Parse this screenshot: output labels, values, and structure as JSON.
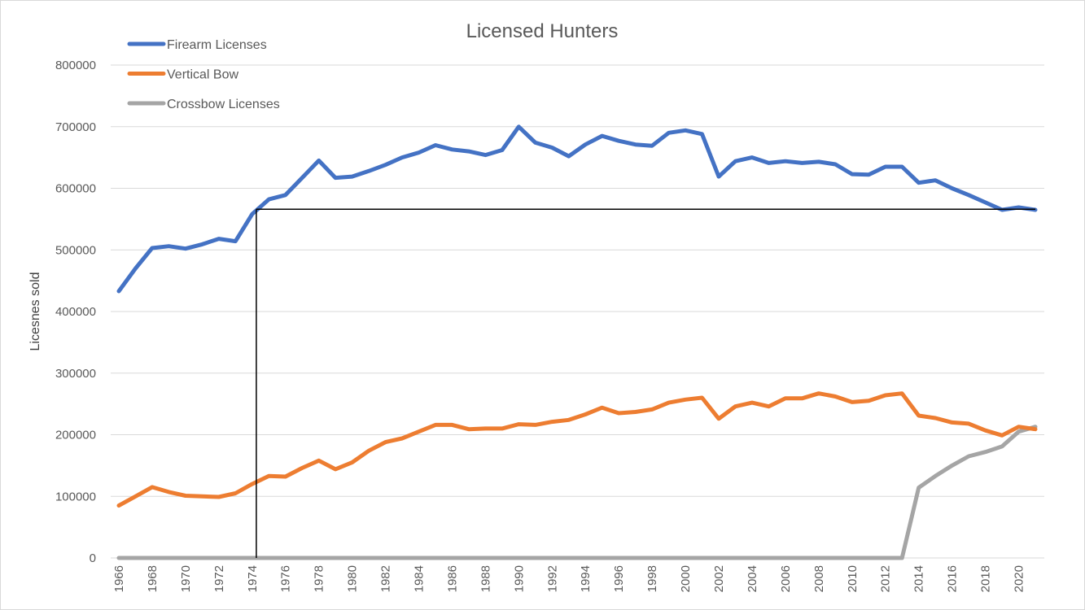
{
  "chart_data": {
    "type": "line",
    "title": "Licensed Hunters",
    "xlabel": "",
    "ylabel": "Licesnes sold",
    "ylim": [
      0,
      800000
    ],
    "ytick_step": 100000,
    "yticks": [
      "0",
      "100000",
      "200000",
      "300000",
      "400000",
      "500000",
      "600000",
      "700000",
      "800000"
    ],
    "xlim": [
      1966,
      2021
    ],
    "xtick_labels": [
      "1966",
      "1968",
      "1970",
      "1972",
      "1974",
      "1976",
      "1978",
      "1980",
      "1982",
      "1984",
      "1986",
      "1988",
      "1990",
      "1992",
      "1994",
      "1996",
      "1998",
      "2000",
      "2002",
      "2004",
      "2006",
      "2008",
      "2010",
      "2012",
      "2014",
      "2016",
      "2018",
      "2020"
    ],
    "grid": "horizontal",
    "legend_placement": "top-left",
    "x": [
      1966,
      1967,
      1968,
      1969,
      1970,
      1971,
      1972,
      1973,
      1974,
      1975,
      1976,
      1977,
      1978,
      1979,
      1980,
      1981,
      1982,
      1983,
      1984,
      1985,
      1986,
      1987,
      1988,
      1989,
      1990,
      1991,
      1992,
      1993,
      1994,
      1995,
      1996,
      1997,
      1998,
      1999,
      2000,
      2001,
      2002,
      2003,
      2004,
      2005,
      2006,
      2007,
      2008,
      2009,
      2010,
      2011,
      2012,
      2013,
      2014,
      2015,
      2016,
      2017,
      2018,
      2019,
      2020,
      2021
    ],
    "series": [
      {
        "name": "Firearm Licenses",
        "color": "#4472C4",
        "values": [
          433000,
          470000,
          503000,
          506000,
          502000,
          509000,
          518000,
          514000,
          558000,
          582000,
          589000,
          617000,
          645000,
          617000,
          619000,
          628000,
          638000,
          650000,
          658000,
          670000,
          663000,
          660000,
          654000,
          662000,
          700000,
          674000,
          666000,
          652000,
          671000,
          685000,
          677000,
          671000,
          669000,
          690000,
          694000,
          688000,
          619000,
          644000,
          650000,
          641000,
          644000,
          641000,
          643000,
          639000,
          623000,
          622000,
          635000,
          635000,
          609000,
          613000,
          600000,
          589000,
          577000,
          565000,
          569000,
          565000
        ]
      },
      {
        "name": "Vertical Bow",
        "color": "#ED7D31",
        "values": [
          85000,
          100000,
          115000,
          107000,
          101000,
          100000,
          99000,
          105000,
          120000,
          133000,
          132000,
          146000,
          158000,
          144000,
          155000,
          174000,
          188000,
          194000,
          205000,
          216000,
          216000,
          209000,
          210000,
          210000,
          217000,
          216000,
          221000,
          224000,
          233000,
          244000,
          235000,
          237000,
          241000,
          252000,
          257000,
          260000,
          226000,
          246000,
          252000,
          246000,
          259000,
          259000,
          267000,
          262000,
          253000,
          255000,
          264000,
          267000,
          231000,
          227000,
          220000,
          218000,
          207000,
          199000,
          213000,
          209000
        ]
      },
      {
        "name": "Crossbow Licenses",
        "color": "#A5A5A5",
        "values": [
          0,
          0,
          0,
          0,
          0,
          0,
          0,
          0,
          0,
          0,
          0,
          0,
          0,
          0,
          0,
          0,
          0,
          0,
          0,
          0,
          0,
          0,
          0,
          0,
          0,
          0,
          0,
          0,
          0,
          0,
          0,
          0,
          0,
          0,
          0,
          0,
          0,
          0,
          0,
          0,
          0,
          0,
          0,
          0,
          0,
          0,
          0,
          0,
          114000,
          133000,
          150000,
          165000,
          172000,
          181000,
          205000,
          213000
        ]
      }
    ],
    "reference_lines": {
      "color": "#000000",
      "x": 1974.25,
      "y": 566000
    }
  }
}
